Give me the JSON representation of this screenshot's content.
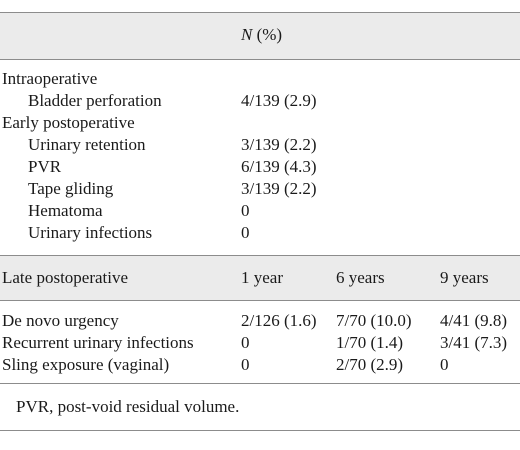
{
  "header": {
    "n_label": "N",
    "pct_label": " (%)"
  },
  "sections": [
    {
      "label": "Intraoperative",
      "rows": [
        {
          "label": "Bladder perforation",
          "value": "4/139 (2.9)"
        }
      ]
    },
    {
      "label": "Early postoperative",
      "rows": [
        {
          "label": "Urinary retention",
          "value": "3/139 (2.2)"
        },
        {
          "label": "PVR",
          "value": "6/139 (4.3)"
        },
        {
          "label": "Tape gliding",
          "value": "3/139 (2.2)"
        },
        {
          "label": "Hematoma",
          "value": "0"
        },
        {
          "label": "Urinary infections",
          "value": "0"
        }
      ]
    }
  ],
  "late": {
    "label": "Late postoperative",
    "columns": [
      "1 year",
      "6 years",
      "9 years"
    ],
    "rows": [
      {
        "label": "De novo urgency",
        "values": [
          "2/126 (1.6)",
          "7/70 (10.0)",
          "4/41 (9.8)"
        ]
      },
      {
        "label": "Recurrent urinary infections",
        "values": [
          "0",
          "1/70 (1.4)",
          "3/41 (7.3)"
        ]
      },
      {
        "label": "Sling exposure (vaginal)",
        "values": [
          "0",
          "2/70 (2.9)",
          "0"
        ]
      }
    ]
  },
  "footnote": "PVR, post-void residual volume."
}
